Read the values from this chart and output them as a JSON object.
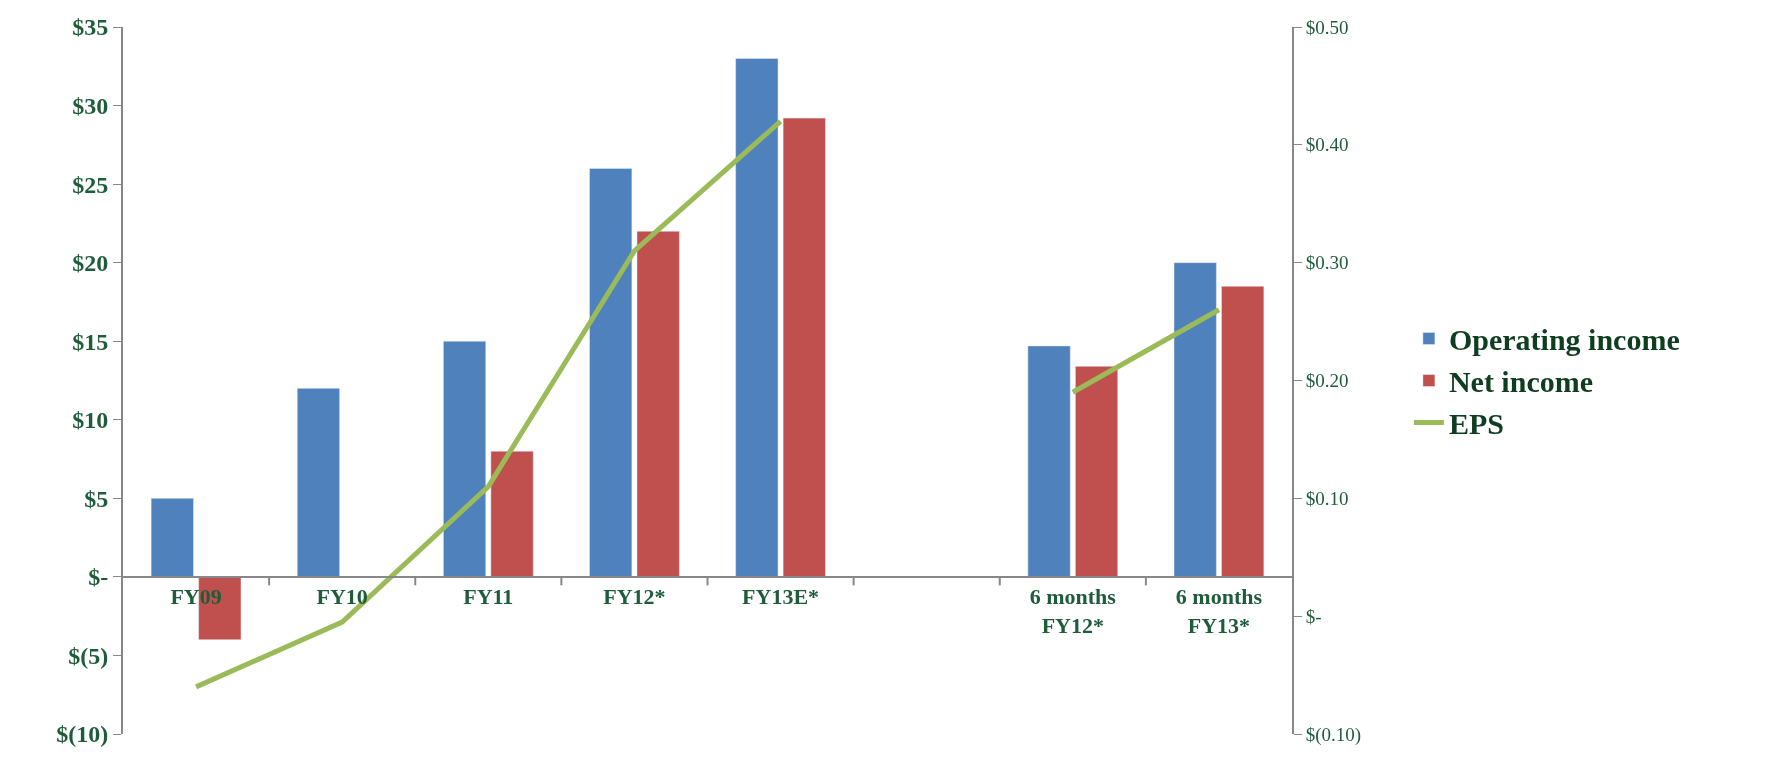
{
  "chart_data": {
    "type": "bar",
    "categories": [
      "FY09",
      "FY10",
      "FY11",
      "FY12*",
      "FY13E*",
      null,
      "6 months\nFY12*",
      "6 months\nFY13*"
    ],
    "series": [
      {
        "name": "Operating income",
        "color": "#4f81bd",
        "values": [
          5,
          12,
          15,
          26,
          33,
          null,
          14.7,
          20.0
        ]
      },
      {
        "name": "Net income",
        "color": "#c0504d",
        "values": [
          -4,
          null,
          8,
          22,
          29.2,
          null,
          13.4,
          18.5
        ]
      },
      {
        "name": "EPS",
        "type": "line",
        "axis": "y2",
        "color": "#9bbb59",
        "marker": "none",
        "line_style": "solid",
        "values": [
          -0.06,
          -0.005,
          0.11,
          0.31,
          0.42,
          null,
          0.19,
          0.26
        ]
      }
    ],
    "ylim": [
      -10,
      35
    ],
    "yticks": [
      {
        "value": -10,
        "label": "$(10)"
      },
      {
        "value": -5,
        "label": "$(5)"
      },
      {
        "value": 0,
        "label": "$-"
      },
      {
        "value": 5,
        "label": "$5"
      },
      {
        "value": 10,
        "label": "$10"
      },
      {
        "value": 15,
        "label": "$15"
      },
      {
        "value": 20,
        "label": "$20"
      },
      {
        "value": 25,
        "label": "$25"
      },
      {
        "value": 30,
        "label": "$30"
      },
      {
        "value": 35,
        "label": "$35"
      }
    ],
    "y2lim": [
      -0.1,
      0.5
    ],
    "y2ticks": [
      {
        "value": -0.1,
        "label": "$(0.10)"
      },
      {
        "value": 0,
        "label": "$-"
      },
      {
        "value": 0.1,
        "label": "$0.10"
      },
      {
        "value": 0.2,
        "label": "$0.20"
      },
      {
        "value": 0.3,
        "label": "$0.30"
      },
      {
        "value": 0.4,
        "label": "$0.40"
      },
      {
        "value": 0.5,
        "label": "$0.50"
      }
    ],
    "legend": "right"
  }
}
